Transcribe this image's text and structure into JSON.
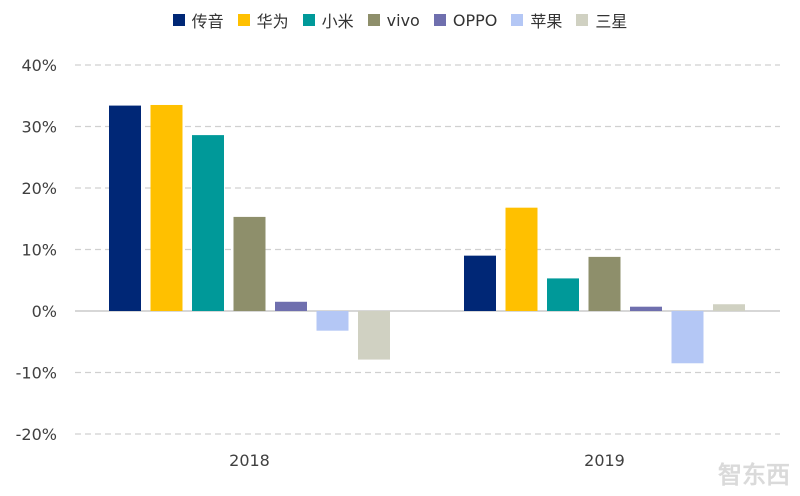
{
  "chart_data": {
    "type": "bar",
    "categories": [
      "2018",
      "2019"
    ],
    "series": [
      {
        "name": "传音",
        "color": "#002776",
        "values": [
          33.4,
          9.0
        ]
      },
      {
        "name": "华为",
        "color": "#FFC000",
        "values": [
          33.5,
          16.8
        ]
      },
      {
        "name": "小米",
        "color": "#009999",
        "values": [
          28.6,
          5.3
        ]
      },
      {
        "name": "vivo",
        "color": "#8E8F6B",
        "values": [
          15.3,
          8.8
        ]
      },
      {
        "name": "OPPO",
        "color": "#6F6FAE",
        "values": [
          1.5,
          0.7
        ]
      },
      {
        "name": "苹果",
        "color": "#B4C7F5",
        "values": [
          -3.2,
          -8.5
        ]
      },
      {
        "name": "三星",
        "color": "#D0D1C2",
        "values": [
          -7.9,
          1.1
        ]
      }
    ],
    "ylim": [
      -20,
      40
    ],
    "yticks": [
      -20,
      -10,
      0,
      10,
      20,
      30,
      40
    ],
    "ytick_labels": [
      "-20%",
      "-10%",
      "0%",
      "10%",
      "20%",
      "30%",
      "40%"
    ],
    "grid": true,
    "legend": "top"
  },
  "watermark": "智东西"
}
